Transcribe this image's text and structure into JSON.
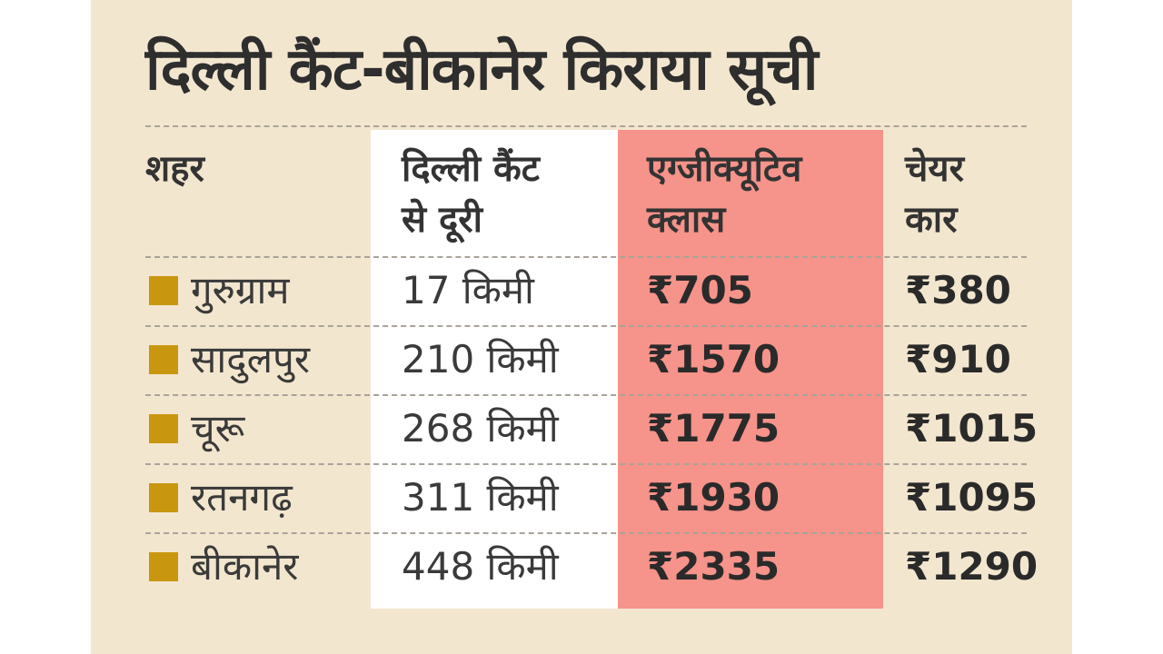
{
  "title": "दिल्ली कैंट-बीकानेर किराया सूची",
  "colors": {
    "card_background": "#f3e6cf",
    "distance_column": "#ffffff",
    "executive_column": "#f6938a",
    "bullet": "#c9970f"
  },
  "headers": {
    "city": "शहर",
    "distance": "दिल्ली कैंट\nसे दूरी",
    "executive": "एग्जीक्यूटिव\nक्लास",
    "chair_car": "चेयर\nकार"
  },
  "rows": [
    {
      "city": "गुरुग्राम",
      "distance": "17 किमी",
      "executive": "₹705",
      "chair_car": "₹380"
    },
    {
      "city": "सादुलपुर",
      "distance": "210 किमी",
      "executive": "₹1570",
      "chair_car": "₹910"
    },
    {
      "city": "चूरू",
      "distance": "268 किमी",
      "executive": "₹1775",
      "chair_car": "₹1015"
    },
    {
      "city": "रतनगढ़",
      "distance": "311 किमी",
      "executive": "₹1930",
      "chair_car": "₹1095"
    },
    {
      "city": "बीकानेर",
      "distance": "448 किमी",
      "executive": "₹2335",
      "chair_car": "₹1290"
    }
  ]
}
